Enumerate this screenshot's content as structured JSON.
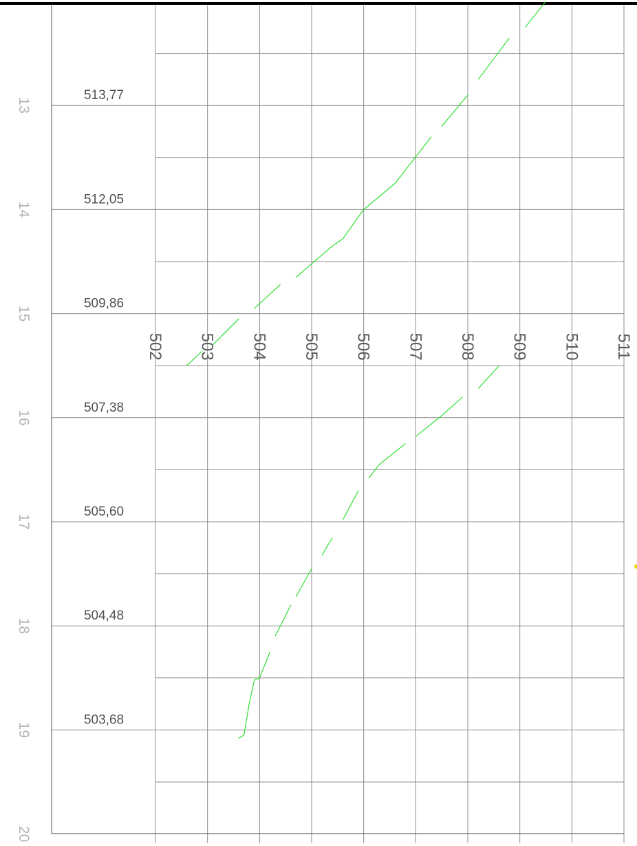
{
  "chart_data": {
    "type": "line",
    "title": "",
    "xlabel": "",
    "ylabel": "",
    "x_ticks": [
      "502",
      "503",
      "504",
      "505",
      "506",
      "507",
      "508",
      "509",
      "510",
      "511"
    ],
    "x_range": [
      502,
      511
    ],
    "y_range": [
      12,
      20
    ],
    "station_ticks": [
      "13",
      "14",
      "15",
      "16",
      "17",
      "18",
      "19",
      "20"
    ],
    "station_values": [
      13,
      14,
      15,
      16,
      17,
      18,
      19,
      20
    ],
    "elevation_labels": [
      {
        "station": 13,
        "text": "513,77"
      },
      {
        "station": 14,
        "text": "512,05"
      },
      {
        "station": 15,
        "text": "509,86"
      },
      {
        "station": 16,
        "text": "507,38"
      },
      {
        "station": 17,
        "text": "505,60"
      },
      {
        "station": 18,
        "text": "504,48"
      },
      {
        "station": 19,
        "text": "503,68"
      }
    ],
    "grid": true,
    "line_color": "#22dd22",
    "series": [
      {
        "values_note": "",
        "segments": [
          [
            [
              509.5,
              12.0
            ],
            [
              509.1,
              12.25
            ]
          ],
          [
            [
              508.8,
              12.35
            ],
            [
              508.2,
              12.75
            ]
          ],
          [
            [
              508.0,
              12.9
            ],
            [
              507.5,
              13.2
            ]
          ],
          [
            [
              507.3,
              13.3
            ],
            [
              506.6,
              13.75
            ],
            [
              506.0,
              14.0
            ],
            [
              505.6,
              14.28
            ],
            [
              505.4,
              14.35
            ],
            [
              504.7,
              14.65
            ]
          ],
          [
            [
              504.4,
              14.72
            ],
            [
              503.9,
              14.95
            ]
          ],
          [
            [
              503.6,
              15.05
            ],
            [
              503.1,
              15.3
            ]
          ],
          [
            [
              502.9,
              15.36
            ],
            [
              502.6,
              15.5
            ]
          ]
        ]
      },
      {
        "values_note": "",
        "segments": [
          [
            [
              508.6,
              15.5
            ],
            [
              508.2,
              15.72
            ]
          ],
          [
            [
              507.9,
              15.8
            ],
            [
              507.5,
              15.98
            ],
            [
              507.0,
              16.18
            ]
          ],
          [
            [
              506.8,
              16.25
            ],
            [
              506.3,
              16.45
            ],
            [
              506.1,
              16.58
            ]
          ],
          [
            [
              505.9,
              16.7
            ],
            [
              505.6,
              16.98
            ]
          ],
          [
            [
              505.4,
              17.15
            ],
            [
              505.2,
              17.32
            ]
          ],
          [
            [
              505.0,
              17.45
            ],
            [
              504.7,
              17.72
            ]
          ],
          [
            [
              504.6,
              17.8
            ],
            [
              504.3,
              18.1
            ]
          ],
          [
            [
              504.2,
              18.25
            ],
            [
              504.0,
              18.5
            ],
            [
              503.9,
              18.52
            ],
            [
              503.8,
              18.75
            ],
            [
              503.7,
              19.05
            ],
            [
              503.6,
              19.08
            ]
          ]
        ]
      }
    ],
    "marker_color": "#e6d800"
  }
}
